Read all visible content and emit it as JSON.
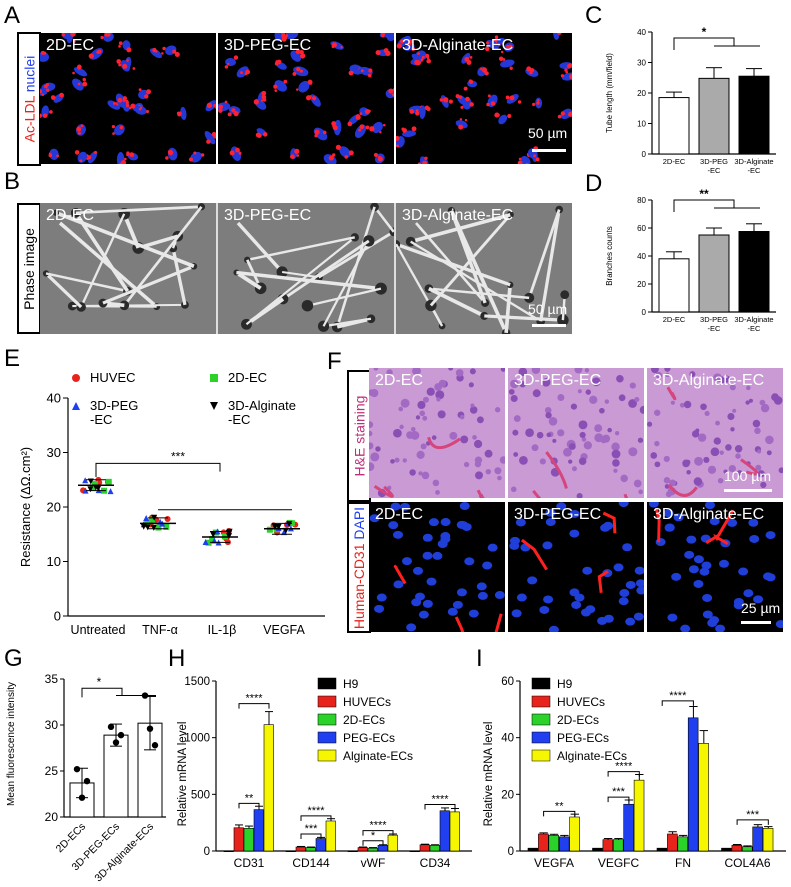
{
  "panels": {
    "A": {
      "letter": "A",
      "stain_label_red": "Ac-LDL",
      "stain_label_blue": "nuclei",
      "tiles": [
        "2D-EC",
        "3D-PEG-EC",
        "3D-Alginate-EC"
      ],
      "scale": "50 µm"
    },
    "B": {
      "letter": "B",
      "stain_label": "Phase image",
      "tiles": [
        "2D-EC",
        "3D-PEG-EC",
        "3D-Alginate-EC"
      ],
      "scale": "50 µm"
    },
    "C": {
      "letter": "C"
    },
    "D": {
      "letter": "D"
    },
    "E": {
      "letter": "E"
    },
    "F": {
      "letter": "F",
      "top_label_he": "H&E staining",
      "bottom_label_red": "Human-CD31",
      "bottom_label_blue": "DAPI",
      "tiles_top": [
        "2D-EC",
        "3D-PEG-EC",
        "3D-Alginate-EC"
      ],
      "tiles_bottom": [
        "2D-EC",
        "3D-PEG-EC",
        "3D-Alginate-EC"
      ],
      "scale_top": "100 µm",
      "scale_bottom": "25 µm"
    },
    "G": {
      "letter": "G"
    },
    "H": {
      "letter": "H"
    },
    "I": {
      "letter": "I"
    }
  },
  "colors": {
    "H9": "#000000",
    "HUVECs": "#e8231c",
    "2D-ECs": "#2ad22a",
    "PEG-ECs": "#1f3ff0",
    "Alginate-ECs": "#f6f600"
  },
  "chart_data": [
    {
      "id": "C",
      "type": "bar",
      "ylabel": "Tube length (mm/field)",
      "ylim": [
        0,
        40
      ],
      "yticks": [
        0,
        10,
        20,
        30,
        40
      ],
      "categories": [
        "2D-EC",
        "3D-PEG-EC",
        "3D-Alginate-EC"
      ],
      "category_lines": [
        [
          "2D-EC"
        ],
        [
          "3D-PEG",
          "-EC"
        ],
        [
          "3D-Alginate",
          "-EC"
        ]
      ],
      "values": [
        18.5,
        24.8,
        25.5
      ],
      "errors": [
        1.8,
        3.5,
        2.5
      ],
      "fills": [
        "#ffffff",
        "#aaaaaa",
        "#000000"
      ],
      "annotation": "*"
    },
    {
      "id": "D",
      "type": "bar",
      "ylabel": "Branches counts",
      "ylim": [
        0,
        80
      ],
      "yticks": [
        0,
        20,
        40,
        60,
        80
      ],
      "categories": [
        "2D-EC",
        "3D-PEG-EC",
        "3D-Alginate-EC"
      ],
      "category_lines": [
        [
          "2D-EC"
        ],
        [
          "3D-PEG",
          "-EC"
        ],
        [
          "3D-Alginate",
          "-EC"
        ]
      ],
      "values": [
        38,
        55,
        57.5
      ],
      "errors": [
        5,
        5,
        5.5
      ],
      "fills": [
        "#ffffff",
        "#aaaaaa",
        "#000000"
      ],
      "annotation": "**"
    },
    {
      "id": "E",
      "type": "scatter",
      "ylabel": "Resistance (ΔΩ.cm²)",
      "ylim": [
        0,
        40
      ],
      "yticks": [
        0,
        10,
        20,
        30,
        40
      ],
      "categories": [
        "Untreated",
        "TNF-α",
        "IL-1β",
        "VEGFA"
      ],
      "means": [
        24,
        17,
        14.5,
        16
      ],
      "legend": [
        {
          "name": "HUVEC",
          "lines": [
            "HUVEC"
          ],
          "color": "#e8231c",
          "marker": "circle"
        },
        {
          "name": "2D-EC",
          "lines": [
            "2D-EC"
          ],
          "color": "#2ad22a",
          "marker": "square"
        },
        {
          "name": "3D-PEG-EC",
          "lines": [
            "3D-PEG",
            "-EC"
          ],
          "color": "#1f3ff0",
          "marker": "triangle-up"
        },
        {
          "name": "3D-Alginate-EC",
          "lines": [
            "3D-Alginate",
            "-EC"
          ],
          "color": "#000000",
          "marker": "triangle-down"
        }
      ],
      "annotation": "***"
    },
    {
      "id": "G",
      "type": "bar",
      "ylabel": "Mean fluorescence intensity",
      "ylim": [
        20,
        35
      ],
      "yticks": [
        20,
        25,
        30,
        35
      ],
      "categories": [
        "2D-ECs",
        "3D-PEG-ECs",
        "3D-Alginate-ECs"
      ],
      "values": [
        23.7,
        28.9,
        30.2
      ],
      "errors": [
        1.6,
        1.2,
        2.9
      ],
      "points": [
        [
          25.2,
          22.1,
          23.9
        ],
        [
          29.8,
          28.1,
          28.9
        ],
        [
          33.2,
          29.6,
          27.8
        ]
      ],
      "fills": [
        "#ffffff",
        "#ffffff",
        "#ffffff"
      ],
      "annotation": "*"
    },
    {
      "id": "H",
      "type": "bar",
      "ylabel": "Relative mRNA level",
      "ylim": [
        0,
        1500
      ],
      "yticks": [
        0,
        500,
        1000,
        1500
      ],
      "categories": [
        "CD31",
        "CD144",
        "vWF",
        "CD34"
      ],
      "series": [
        {
          "name": "H9",
          "values": [
            1,
            1,
            1,
            1
          ],
          "errors": [
            0,
            0,
            0,
            0
          ]
        },
        {
          "name": "HUVECs",
          "values": [
            205,
            35,
            30,
            55
          ],
          "errors": [
            25,
            5,
            5,
            5
          ]
        },
        {
          "name": "2D-ECs",
          "values": [
            200,
            30,
            25,
            50
          ],
          "errors": [
            20,
            5,
            5,
            5
          ]
        },
        {
          "name": "PEG-ECs",
          "values": [
            365,
            110,
            50,
            355
          ],
          "errors": [
            30,
            10,
            5,
            25
          ]
        },
        {
          "name": "Alginate-ECs",
          "values": [
            1115,
            265,
            140,
            345
          ],
          "errors": [
            115,
            20,
            10,
            30
          ]
        }
      ],
      "annotations": [
        "**",
        "****",
        "***",
        "****",
        "*",
        "****",
        "****"
      ]
    },
    {
      "id": "I",
      "type": "bar",
      "ylabel": "Relative mRNA level",
      "ylim": [
        0,
        60
      ],
      "yticks": [
        0,
        20,
        40,
        60
      ],
      "categories": [
        "VEGFA",
        "VEGFC",
        "FN",
        "COL4A6"
      ],
      "series": [
        {
          "name": "H9",
          "values": [
            1,
            1,
            1,
            1
          ],
          "errors": [
            0,
            0,
            0,
            0
          ]
        },
        {
          "name": "HUVECs",
          "values": [
            6,
            4,
            6,
            2
          ],
          "errors": [
            0.4,
            0.4,
            0.8,
            0.3
          ]
        },
        {
          "name": "2D-ECs",
          "values": [
            5.5,
            4,
            5,
            1.5
          ],
          "errors": [
            0.4,
            0.4,
            0.5,
            0.3
          ]
        },
        {
          "name": "PEG-ECs",
          "values": [
            5,
            16.5,
            47,
            8.5
          ],
          "errors": [
            0.5,
            1.5,
            4,
            0.8
          ]
        },
        {
          "name": "Alginate-ECs",
          "values": [
            12,
            25,
            38,
            8
          ],
          "errors": [
            1,
            2,
            4.5,
            0.6
          ]
        }
      ],
      "annotations": [
        "**",
        "***",
        "****",
        "****",
        "***"
      ]
    }
  ]
}
